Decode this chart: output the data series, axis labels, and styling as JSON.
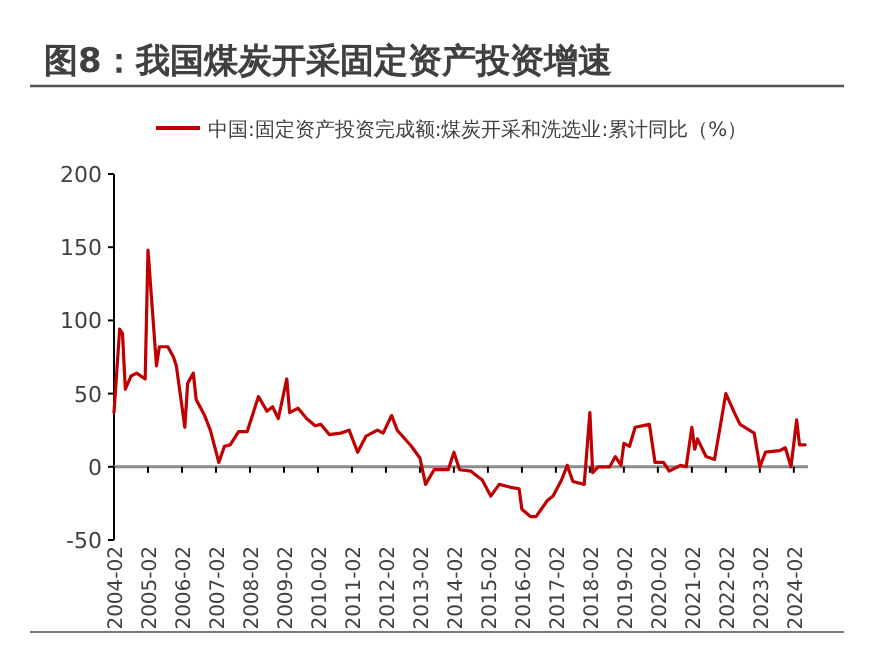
{
  "chart_data": {
    "type": "line",
    "title": "图8：我国煤炭开采固定资产投资增速",
    "x": [
      "2004-02",
      "2004-04",
      "2004-05",
      "2004-06",
      "2004-08",
      "2004-10",
      "2005-01",
      "2005-02",
      "2005-05",
      "2005-06",
      "2005-09",
      "2005-11",
      "2005-12",
      "2006-03",
      "2006-04",
      "2006-06",
      "2006-07",
      "2006-10",
      "2006-12",
      "2007-03",
      "2007-05",
      "2007-07",
      "2007-10",
      "2008-01",
      "2008-04",
      "2008-05",
      "2008-08",
      "2008-10",
      "2008-12",
      "2009-03",
      "2009-04",
      "2009-07",
      "2009-10",
      "2010-01",
      "2010-03",
      "2010-06",
      "2010-10",
      "2011-01",
      "2011-04",
      "2011-07",
      "2011-11",
      "2012-01",
      "2012-04",
      "2012-06",
      "2012-11",
      "2013-02",
      "2013-04",
      "2013-07",
      "2013-12",
      "2014-02",
      "2014-04",
      "2014-08",
      "2014-12",
      "2015-03",
      "2015-06",
      "2015-10",
      "2016-01",
      "2016-02",
      "2016-05",
      "2016-07",
      "2016-11",
      "2017-01",
      "2017-04",
      "2017-06",
      "2017-08",
      "2017-12",
      "2018-02",
      "2018-03",
      "2018-05",
      "2018-09",
      "2018-11",
      "2019-01",
      "2019-02",
      "2019-04",
      "2019-06",
      "2019-11",
      "2020-01",
      "2020-04",
      "2020-06",
      "2020-10",
      "2020-12",
      "2021-02",
      "2021-03",
      "2021-04",
      "2021-07",
      "2021-10",
      "2022-02",
      "2022-05",
      "2022-07",
      "2022-12",
      "2023-02",
      "2023-04",
      "2023-09",
      "2023-11",
      "2024-01",
      "2024-03",
      "2024-04",
      "2024-06"
    ],
    "series": [
      {
        "name": "中国:固定资产投资完成额:煤炭开采和洗选业:累计同比（%）",
        "color": "#c00000",
        "values": [
          37,
          94,
          91,
          53,
          62,
          64,
          60,
          148,
          69,
          82,
          82,
          75,
          69,
          27,
          57,
          64,
          46,
          35,
          25,
          3,
          14,
          15,
          24,
          24,
          42,
          48,
          38,
          41,
          33,
          60,
          37,
          40,
          33,
          28,
          29,
          22,
          23,
          25,
          10,
          21,
          25,
          23,
          35,
          25,
          14,
          6,
          -12,
          -2,
          -2,
          10,
          -2,
          -3,
          -9,
          -20,
          -12,
          -14,
          -15,
          -29,
          -34,
          -34,
          -23,
          -20,
          -9,
          1,
          -10,
          -12,
          37,
          -4,
          0,
          0,
          7,
          1,
          16,
          14,
          27,
          29,
          3,
          3,
          -3,
          1,
          0,
          27,
          12,
          19,
          7,
          5,
          50,
          37,
          29,
          23,
          0,
          10,
          11,
          13,
          0,
          32,
          15,
          15
        ]
      }
    ],
    "xlim": [
      "2004-02",
      "2024-07"
    ],
    "xticks": [
      "2004-02",
      "2005-02",
      "2006-02",
      "2007-02",
      "2008-02",
      "2009-02",
      "2010-02",
      "2011-02",
      "2012-02",
      "2013-02",
      "2014-02",
      "2015-02",
      "2016-02",
      "2017-02",
      "2018-02",
      "2019-02",
      "2020-02",
      "2021-02",
      "2022-02",
      "2023-02",
      "2024-02"
    ],
    "ylim": [
      -50,
      200
    ],
    "yticks": [
      -50,
      0,
      50,
      100,
      150,
      200
    ],
    "ref_lines": [
      {
        "axis": "y",
        "value": 0,
        "color": "#8c8c8c"
      }
    ],
    "legend": "top",
    "marker": "none",
    "line_style": "solid"
  }
}
